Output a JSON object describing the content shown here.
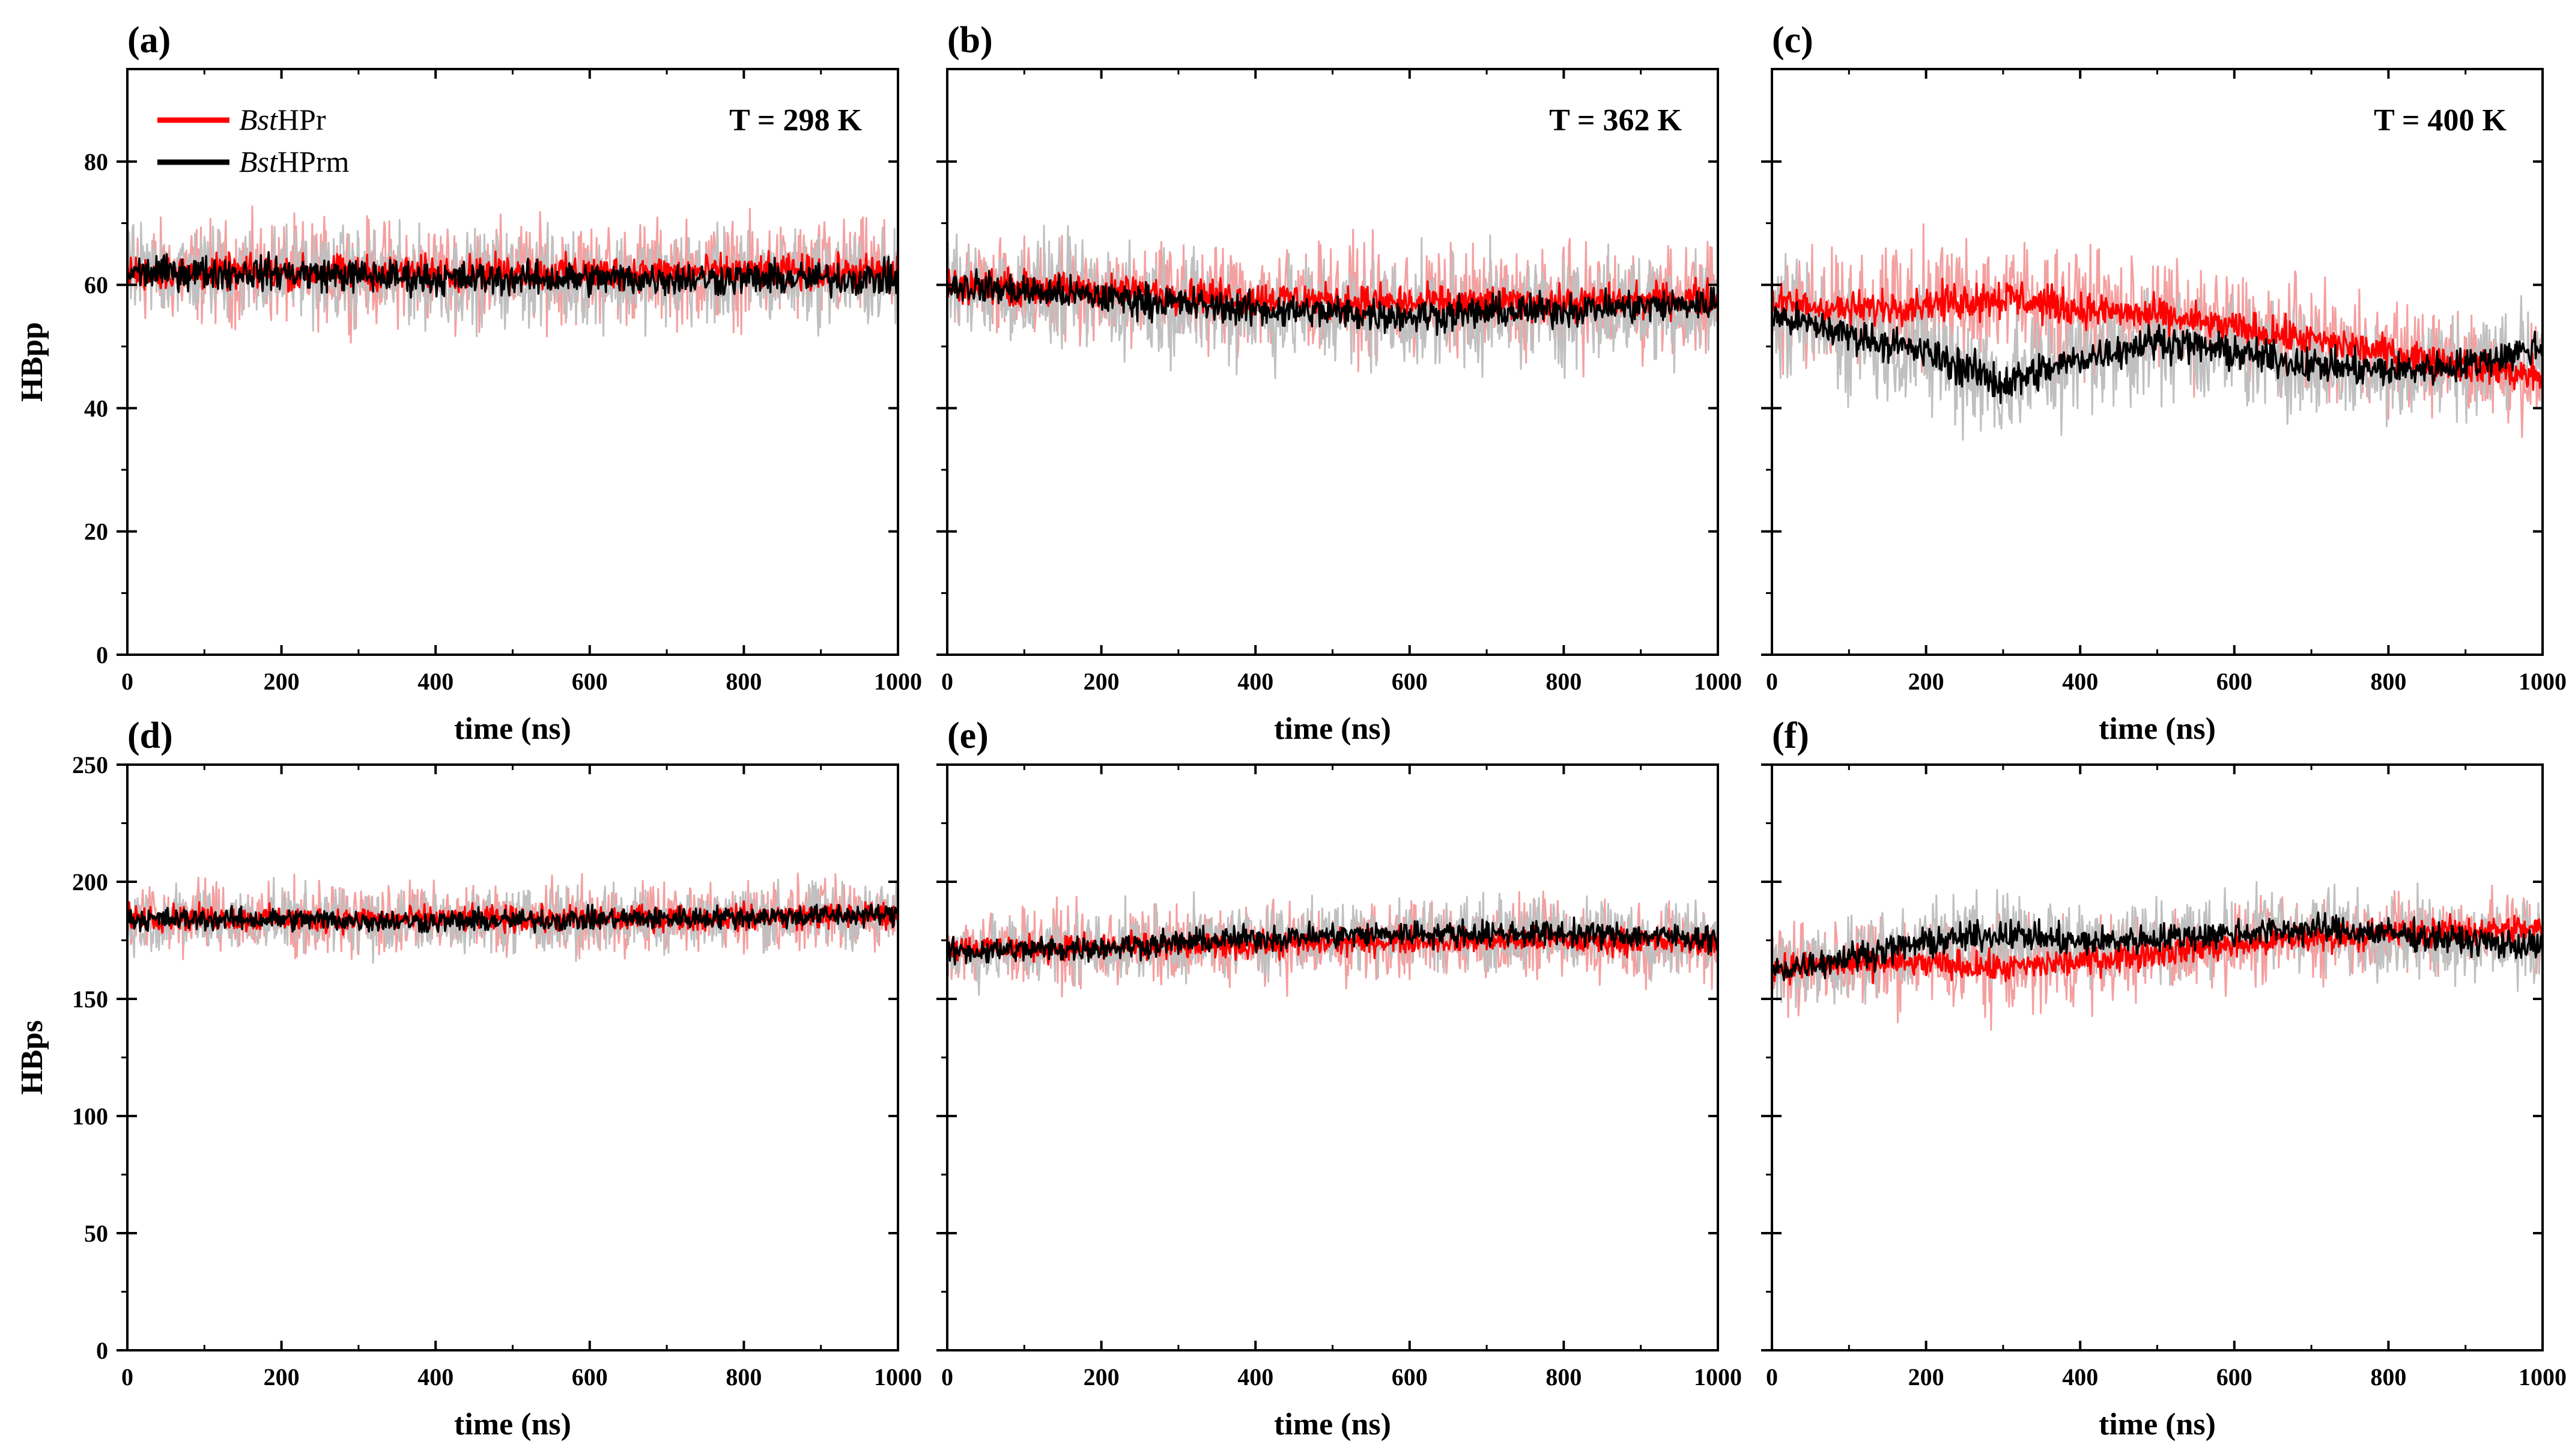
{
  "chart_data": {
    "type": "line",
    "rows": [
      {
        "ylabel": "HBpp",
        "ylim": [
          0,
          95
        ],
        "yticks": [
          0,
          20,
          40,
          60,
          80
        ]
      },
      {
        "ylabel": "HBps",
        "ylim": [
          0,
          250
        ],
        "yticks": [
          0,
          50,
          100,
          150,
          200,
          250
        ]
      }
    ],
    "xlabel": "time (ns)",
    "xlim": [
      0,
      1000
    ],
    "xticks": [
      0,
      200,
      400,
      600,
      800,
      1000
    ],
    "legend": {
      "position": "top-left",
      "entries": [
        {
          "italic": "Bst",
          "text": "HPr",
          "color": "#ff0000"
        },
        {
          "italic": "Bst",
          "text": "HPrm",
          "color": "#000000"
        }
      ]
    },
    "colors": {
      "hpr": "#ff0000",
      "hprm": "#000000",
      "hpr_band": "#f4a0a0",
      "hprm_band": "#c0c0c0"
    },
    "panels": [
      {
        "tag": "(a)",
        "row": 0,
        "col": 0,
        "temperature": "T = 298 K",
        "series": [
          {
            "name": "BstHPr",
            "x": [
              0,
              200,
              400,
              600,
              800,
              1000
            ],
            "mean": [
              62,
              62,
              62,
              62,
              62,
              62
            ],
            "spread": [
              12,
              12,
              12,
              12,
              12,
              12
            ],
            "dark": [
              4,
              4,
              4,
              4,
              4,
              4
            ]
          },
          {
            "name": "BstHPrm",
            "x": [
              0,
              200,
              400,
              600,
              800,
              1000
            ],
            "mean": [
              62,
              62,
              61,
              61,
              61,
              61
            ],
            "spread": [
              11,
              11,
              11,
              11,
              11,
              11
            ],
            "dark": [
              4,
              4,
              4,
              4,
              4,
              4
            ]
          }
        ]
      },
      {
        "tag": "(b)",
        "row": 0,
        "col": 1,
        "temperature": "T = 362 K",
        "series": [
          {
            "name": "BstHPr",
            "x": [
              0,
              200,
              400,
              600,
              800,
              1000
            ],
            "mean": [
              60,
              59,
              58,
              57,
              57,
              58
            ],
            "spread": [
              12,
              12,
              13,
              13,
              13,
              13
            ],
            "dark": [
              4,
              4,
              4,
              4,
              4,
              4
            ]
          },
          {
            "name": "BstHPrm",
            "x": [
              0,
              200,
              400,
              600,
              800,
              1000
            ],
            "mean": [
              60,
              58,
              56,
              55,
              56,
              57
            ],
            "spread": [
              12,
              13,
              13,
              13,
              13,
              13
            ],
            "dark": [
              4,
              4,
              4,
              4,
              4,
              4
            ]
          }
        ]
      },
      {
        "tag": "(c)",
        "row": 0,
        "col": 2,
        "temperature": "T = 400 K",
        "series": [
          {
            "name": "BstHPr",
            "x": [
              0,
              100,
              200,
              300,
              400,
              500,
              600,
              700,
              800,
              900,
              1000
            ],
            "mean": [
              57,
              56,
              57,
              58,
              56,
              55,
              53,
              51,
              49,
              47,
              45
            ],
            "spread": [
              13,
              14,
              15,
              15,
              14,
              13,
              13,
              13,
              12,
              12,
              12
            ],
            "dark": [
              4,
              4,
              4,
              5,
              4,
              4,
              4,
              4,
              4,
              4,
              4
            ]
          },
          {
            "name": "BstHPrm",
            "x": [
              0,
              100,
              200,
              300,
              400,
              500,
              600,
              700,
              800,
              900,
              1000
            ],
            "mean": [
              55,
              52,
              49,
              44,
              48,
              51,
              49,
              47,
              46,
              47,
              50
            ],
            "spread": [
              13,
              14,
              15,
              16,
              14,
              13,
              13,
              13,
              12,
              12,
              12
            ],
            "dark": [
              4,
              4,
              4,
              5,
              4,
              4,
              4,
              4,
              4,
              4,
              4
            ]
          }
        ]
      },
      {
        "tag": "(d)",
        "row": 1,
        "col": 0,
        "temperature": "",
        "series": [
          {
            "name": "BstHPr",
            "x": [
              0,
              200,
              400,
              600,
              800,
              1000
            ],
            "mean": [
              185,
              184,
              184,
              184,
              185,
              186
            ],
            "spread": [
              22,
              22,
              22,
              22,
              22,
              22
            ],
            "dark": [
              8,
              8,
              8,
              8,
              8,
              8
            ]
          },
          {
            "name": "BstHPrm",
            "x": [
              0,
              200,
              400,
              600,
              800,
              1000
            ],
            "mean": [
              184,
              184,
              183,
              184,
              185,
              186
            ],
            "spread": [
              20,
              20,
              20,
              20,
              20,
              20
            ],
            "dark": [
              7,
              7,
              7,
              7,
              7,
              7
            ]
          }
        ]
      },
      {
        "tag": "(e)",
        "row": 1,
        "col": 1,
        "temperature": "",
        "series": [
          {
            "name": "BstHPr",
            "x": [
              0,
              200,
              400,
              600,
              800,
              1000
            ],
            "mean": [
              172,
              172,
              173,
              175,
              175,
              174
            ],
            "spread": [
              24,
              24,
              24,
              24,
              24,
              24
            ],
            "dark": [
              8,
              8,
              8,
              8,
              8,
              8
            ]
          },
          {
            "name": "BstHPrm",
            "x": [
              0,
              200,
              400,
              600,
              800,
              1000
            ],
            "mean": [
              170,
              172,
              176,
              178,
              178,
              176
            ],
            "spread": [
              22,
              22,
              22,
              22,
              22,
              22
            ],
            "dark": [
              8,
              8,
              8,
              8,
              8,
              8
            ]
          }
        ]
      },
      {
        "tag": "(f)",
        "row": 1,
        "col": 2,
        "temperature": "",
        "series": [
          {
            "name": "BstHPr",
            "x": [
              0,
              100,
              200,
              300,
              400,
              500,
              600,
              700,
              800,
              900,
              1000
            ],
            "mean": [
              163,
              165,
              165,
              163,
              166,
              170,
              173,
              176,
              178,
              179,
              180
            ],
            "spread": [
              25,
              26,
              27,
              28,
              27,
              26,
              25,
              25,
              25,
              25,
              24
            ],
            "dark": [
              9,
              9,
              9,
              9,
              9,
              9,
              9,
              9,
              9,
              9,
              9
            ]
          },
          {
            "name": "BstHPrm",
            "x": [
              0,
              100,
              200,
              300,
              400,
              500,
              600,
              700,
              800,
              900,
              1000
            ],
            "mean": [
              162,
              168,
              174,
              178,
              174,
              176,
              178,
              180,
              178,
              175,
              172
            ],
            "spread": [
              25,
              26,
              27,
              28,
              27,
              26,
              26,
              26,
              25,
              25,
              25
            ],
            "dark": [
              9,
              9,
              9,
              9,
              9,
              9,
              9,
              9,
              9,
              9,
              9
            ]
          }
        ]
      }
    ]
  }
}
